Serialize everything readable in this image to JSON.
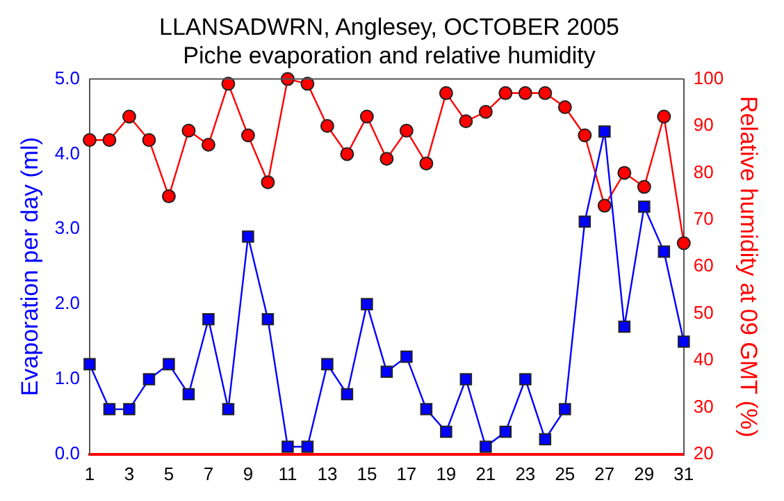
{
  "chart_data": {
    "type": "line",
    "title": "LLANSADWRN, Anglesey, OCTOBER 2005",
    "subtitle": "Piche evaporation and relative humidity",
    "x": [
      1,
      2,
      3,
      4,
      5,
      6,
      7,
      8,
      9,
      10,
      11,
      12,
      13,
      14,
      15,
      16,
      17,
      18,
      19,
      20,
      21,
      22,
      23,
      24,
      25,
      26,
      27,
      28,
      29,
      30,
      31
    ],
    "xlim": [
      1,
      31
    ],
    "xticks": [
      1,
      3,
      5,
      7,
      9,
      11,
      13,
      15,
      17,
      19,
      21,
      23,
      25,
      27,
      29,
      31
    ],
    "ylabel": "Evaporation per day (ml)",
    "y2label": "Relative humidity at 09 GMT (%)",
    "ylim": [
      0,
      5
    ],
    "yticks": [
      {
        "value": 0,
        "label": "0.0"
      },
      {
        "value": 1,
        "label": "1.0"
      },
      {
        "value": 2,
        "label": "2.0"
      },
      {
        "value": 3,
        "label": "3.0"
      },
      {
        "value": 4,
        "label": "4.0"
      },
      {
        "value": 5,
        "label": "5.0"
      }
    ],
    "y2lim": [
      20,
      100
    ],
    "y2ticks": [
      20,
      30,
      40,
      50,
      60,
      70,
      80,
      90,
      100
    ],
    "grid": false,
    "legend": false,
    "series": [
      {
        "color": "#0000ff",
        "marker": "square",
        "values": [
          1.2,
          0.6,
          0.6,
          1.0,
          1.2,
          0.8,
          1.8,
          0.6,
          2.9,
          1.8,
          0.1,
          0.1,
          1.2,
          0.8,
          2.0,
          1.1,
          1.3,
          0.6,
          0.3,
          1.0,
          0.1,
          0.3,
          1.0,
          0.2,
          0.6,
          3.1,
          4.3,
          1.7,
          3.3,
          2.7,
          1.5
        ]
      },
      {
        "color": "#ff0000",
        "marker": "circle",
        "axis": "y2",
        "values": [
          87,
          87,
          92,
          87,
          75,
          89,
          86,
          99,
          88,
          78,
          100,
          99,
          90,
          84,
          92,
          83,
          89,
          82,
          97,
          91,
          93,
          97,
          97,
          97,
          94,
          88,
          73,
          80,
          77,
          92,
          65
        ]
      }
    ]
  }
}
